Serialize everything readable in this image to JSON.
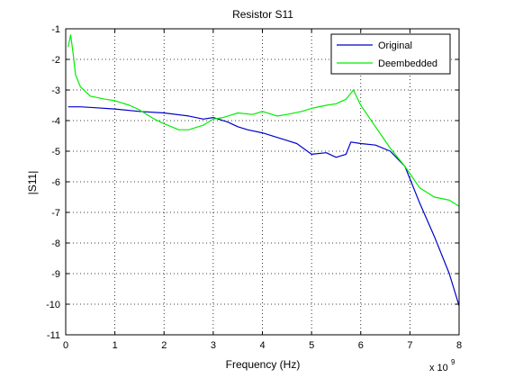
{
  "chart_data": {
    "type": "line",
    "title": "Resistor S11",
    "xlabel": "Frequency (Hz)",
    "ylabel": "|S11|",
    "x_multiplier_label": "x 10",
    "x_multiplier_exponent": "9",
    "xlim": [
      0,
      8
    ],
    "ylim": [
      -11,
      -1
    ],
    "xticks": [
      0,
      1,
      2,
      3,
      4,
      5,
      6,
      7,
      8
    ],
    "yticks": [
      -11,
      -10,
      -9,
      -8,
      -7,
      -6,
      -5,
      -4,
      -3,
      -2,
      -1
    ],
    "grid": true,
    "legend_position": "top-right",
    "series": [
      {
        "name": "Original",
        "color": "#0000cc",
        "x": [
          0.05,
          0.3,
          0.6,
          1.0,
          1.5,
          2.0,
          2.5,
          2.8,
          3.0,
          3.3,
          3.5,
          3.7,
          4.0,
          4.3,
          4.5,
          4.7,
          5.0,
          5.3,
          5.5,
          5.7,
          5.8,
          6.0,
          6.3,
          6.6,
          6.9,
          7.2,
          7.5,
          7.8,
          8.0
        ],
        "y": [
          -3.55,
          -3.55,
          -3.58,
          -3.62,
          -3.7,
          -3.75,
          -3.85,
          -3.95,
          -3.9,
          -4.05,
          -4.2,
          -4.3,
          -4.4,
          -4.55,
          -4.65,
          -4.75,
          -5.1,
          -5.05,
          -5.2,
          -5.1,
          -4.7,
          -4.75,
          -4.8,
          -5.0,
          -5.5,
          -6.7,
          -7.8,
          -9.0,
          -10.05
        ]
      },
      {
        "name": "Deembedded",
        "color": "#00ee00",
        "x": [
          0.05,
          0.1,
          0.15,
          0.2,
          0.3,
          0.5,
          0.8,
          1.0,
          1.3,
          1.5,
          1.8,
          2.0,
          2.3,
          2.5,
          2.8,
          3.0,
          3.2,
          3.5,
          3.8,
          4.0,
          4.3,
          4.5,
          4.8,
          5.0,
          5.3,
          5.5,
          5.7,
          5.85,
          6.0,
          6.3,
          6.6,
          6.9,
          7.2,
          7.5,
          7.8,
          8.0
        ],
        "y": [
          -1.6,
          -1.2,
          -1.8,
          -2.5,
          -2.9,
          -3.2,
          -3.3,
          -3.35,
          -3.5,
          -3.65,
          -3.95,
          -4.1,
          -4.3,
          -4.3,
          -4.15,
          -3.95,
          -3.9,
          -3.75,
          -3.8,
          -3.7,
          -3.85,
          -3.8,
          -3.7,
          -3.6,
          -3.5,
          -3.45,
          -3.3,
          -3.0,
          -3.5,
          -4.2,
          -4.9,
          -5.5,
          -6.2,
          -6.5,
          -6.6,
          -6.8
        ]
      }
    ]
  }
}
